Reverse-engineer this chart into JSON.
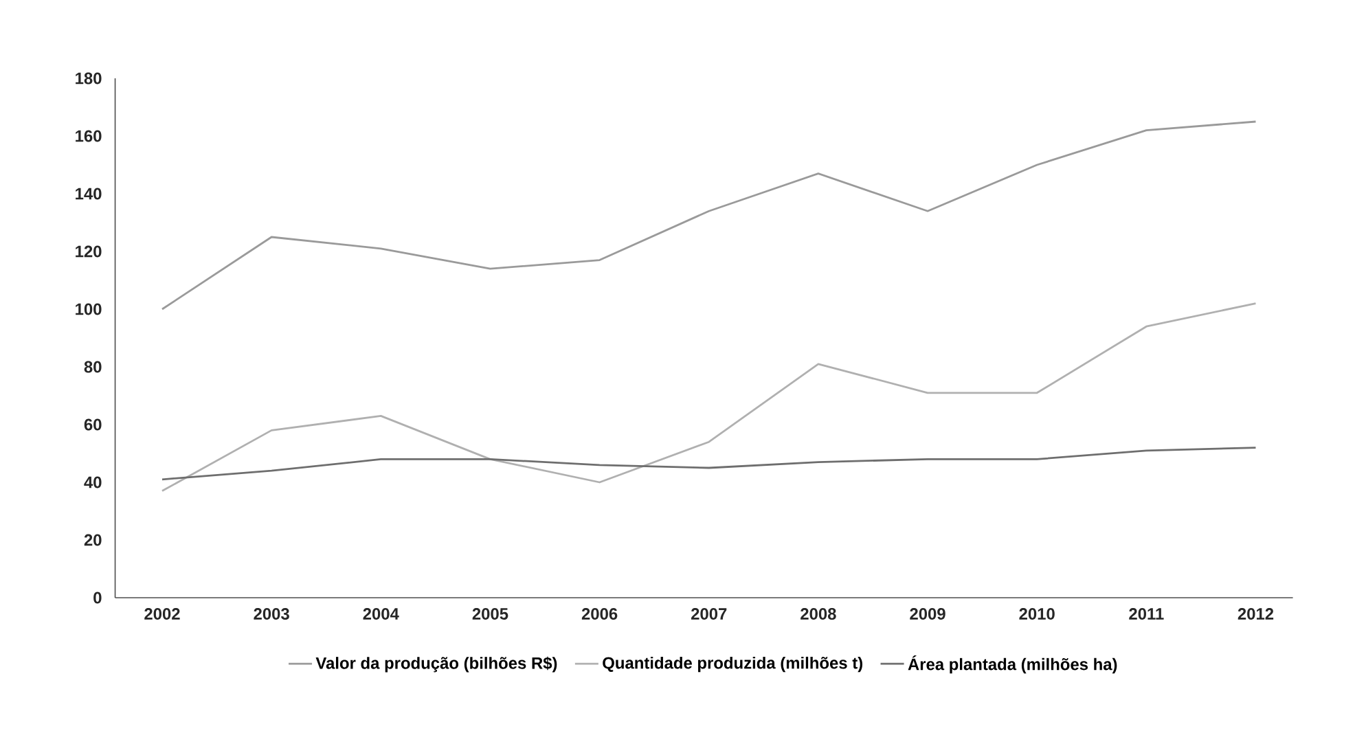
{
  "chart_data": {
    "type": "line",
    "categories": [
      "2002",
      "2003",
      "2004",
      "2005",
      "2006",
      "2007",
      "2008",
      "2009",
      "2010",
      "2011",
      "2012"
    ],
    "series": [
      {
        "name": "Valor da produção (bilhões R$)",
        "color": "#9a9a9a",
        "values": [
          100,
          125,
          121,
          114,
          117,
          134,
          147,
          134,
          150,
          162,
          165
        ]
      },
      {
        "name": "Quantidade produzida (milhões t)",
        "color": "#b0b0b0",
        "values": [
          37,
          58,
          63,
          48,
          40,
          54,
          81,
          71,
          71,
          94,
          102
        ]
      },
      {
        "name": "Área plantada (milhões ha)",
        "color": "#6e6e6e",
        "values": [
          41,
          44,
          48,
          48,
          46,
          45,
          47,
          48,
          48,
          51,
          52
        ]
      }
    ],
    "ylim": [
      0,
      180
    ],
    "yticks": [
      0,
      20,
      40,
      60,
      80,
      100,
      120,
      140,
      160,
      180
    ],
    "legend": "bottom"
  }
}
